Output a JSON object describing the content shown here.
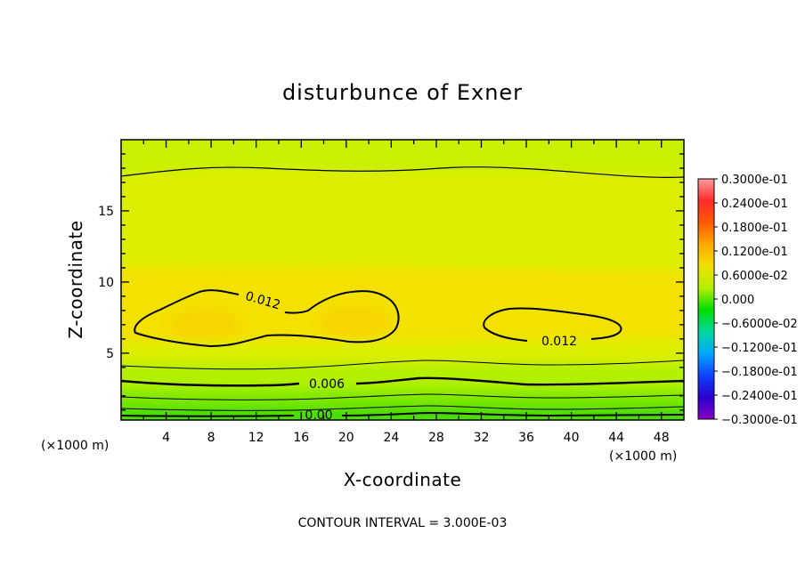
{
  "chart_data": {
    "type": "heatmap",
    "title": "disturbunce of Exner",
    "xlabel": "X-coordinate",
    "ylabel": "Z-coordinate",
    "x_unit": "(×1000 m)",
    "y_unit": "(×1000 m)",
    "xlim": [
      0,
      50
    ],
    "ylim": [
      0.3,
      20
    ],
    "x_ticks": [
      "4",
      "8",
      "12",
      "16",
      "20",
      "24",
      "28",
      "32",
      "36",
      "40",
      "44",
      "48"
    ],
    "x_tick_values": [
      4,
      8,
      12,
      16,
      20,
      24,
      28,
      32,
      36,
      40,
      44,
      48
    ],
    "y_ticks": [
      "5",
      "10",
      "15"
    ],
    "y_tick_values": [
      5,
      10,
      15
    ],
    "contour_labels": [
      "0.012",
      "0.012",
      "0.006",
      "0.00"
    ],
    "contour_interval": "CONTOUR INTERVAL = 3.000E-03",
    "colorbar": {
      "labels": [
        "0.3000e-01",
        "0.2400e-01",
        "0.1800e-01",
        "0.1200e-01",
        "0.6000e-02",
        "0.000",
        "−0.6000e-02",
        "−0.1200e-01",
        "−0.1800e-01",
        "−0.2400e-01",
        "−0.3000e-01"
      ],
      "colors": [
        "#ff9a9a",
        "#ff2a2a",
        "#ff5a00",
        "#ffaa00",
        "#f0e000",
        "#b4f000",
        "#00dd00",
        "#00d8a0",
        "#00a8ff",
        "#1040ff",
        "#2a00cc",
        "#8a00c8"
      ],
      "range": [
        -0.03,
        0.03
      ]
    },
    "field_colors": {
      "background": "#dcef00",
      "band_top": "#c8f000",
      "core": "#f3e100",
      "peak": "#f8d400",
      "ground_1": "#b2f000",
      "ground_2": "#7ee800",
      "ground_3": "#3cdc00"
    }
  }
}
